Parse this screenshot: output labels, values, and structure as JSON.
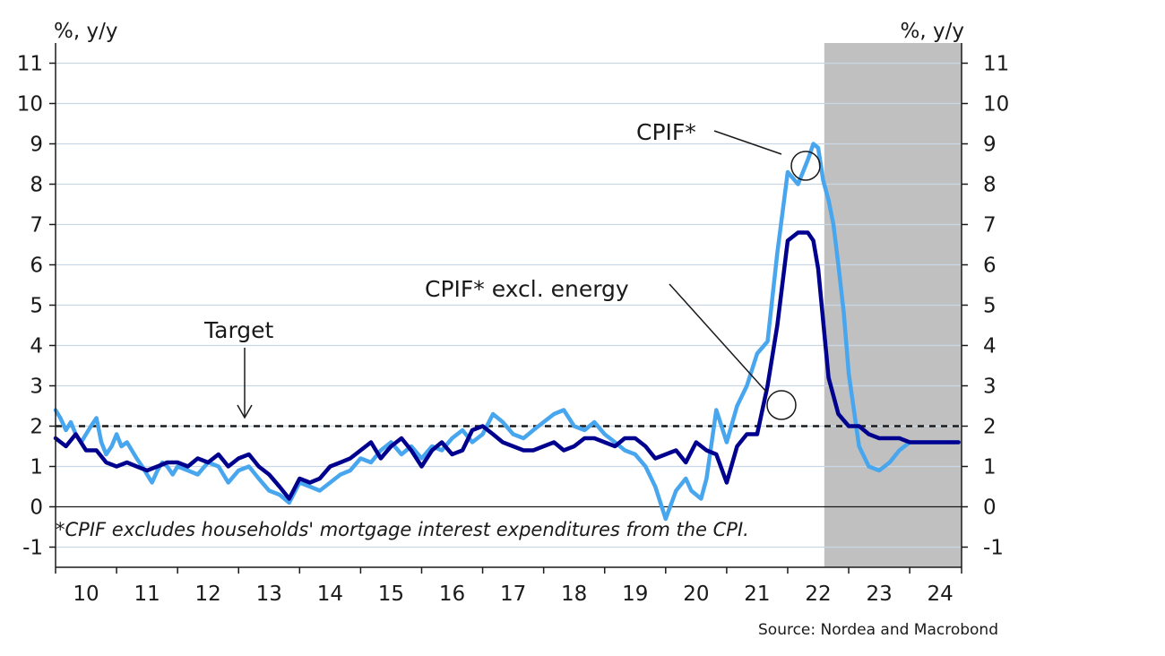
{
  "chart_data": {
    "type": "line",
    "y_unit_left": "%, y/y",
    "y_unit_right": "%, y/y",
    "ylim": [
      -1.5,
      11.5
    ],
    "y_ticks": [
      -1,
      0,
      1,
      2,
      3,
      4,
      5,
      6,
      7,
      8,
      9,
      10,
      11
    ],
    "x_range": [
      2010,
      2024.85
    ],
    "x_tick_labels": [
      "10",
      "11",
      "12",
      "13",
      "14",
      "15",
      "16",
      "17",
      "18",
      "19",
      "20",
      "21",
      "22",
      "23",
      "24"
    ],
    "grid": true,
    "target_value": 2,
    "target_label": "Target",
    "forecast_shading_start": 2022.6,
    "forecast_shading_color": "#c0c0c0",
    "series": [
      {
        "name": "CPIF*",
        "color": "#48a6ee",
        "x": [
          2010.0,
          2010.08,
          2010.17,
          2010.25,
          2010.33,
          2010.42,
          2010.5,
          2010.58,
          2010.67,
          2010.75,
          2010.83,
          2010.92,
          2011.0,
          2011.08,
          2011.17,
          2011.25,
          2011.33,
          2011.42,
          2011.5,
          2011.58,
          2011.67,
          2011.75,
          2011.83,
          2011.92,
          2012.0,
          2012.17,
          2012.33,
          2012.5,
          2012.67,
          2012.83,
          2013.0,
          2013.17,
          2013.33,
          2013.5,
          2013.67,
          2013.83,
          2014.0,
          2014.17,
          2014.33,
          2014.5,
          2014.67,
          2014.83,
          2015.0,
          2015.17,
          2015.33,
          2015.5,
          2015.67,
          2015.83,
          2016.0,
          2016.17,
          2016.33,
          2016.5,
          2016.67,
          2016.83,
          2017.0,
          2017.17,
          2017.33,
          2017.5,
          2017.67,
          2017.83,
          2018.0,
          2018.17,
          2018.33,
          2018.5,
          2018.67,
          2018.83,
          2019.0,
          2019.17,
          2019.33,
          2019.5,
          2019.67,
          2019.83,
          2020.0,
          2020.17,
          2020.33,
          2020.42,
          2020.5,
          2020.58,
          2020.67,
          2020.83,
          2021.0,
          2021.17,
          2021.33,
          2021.5,
          2021.67,
          2021.83,
          2022.0,
          2022.17,
          2022.33,
          2022.42,
          2022.5,
          2022.58,
          2022.67,
          2022.75,
          2022.83,
          2022.92,
          2023.0,
          2023.17,
          2023.33,
          2023.5,
          2023.67,
          2023.83,
          2024.0,
          2024.17,
          2024.33,
          2024.5,
          2024.67,
          2024.8
        ],
        "y": [
          2.4,
          2.2,
          1.9,
          2.1,
          1.8,
          1.6,
          1.8,
          2.0,
          2.2,
          1.6,
          1.3,
          1.5,
          1.8,
          1.5,
          1.6,
          1.4,
          1.2,
          1.0,
          0.8,
          0.6,
          0.9,
          1.1,
          1.0,
          0.8,
          1.0,
          0.9,
          0.8,
          1.1,
          1.0,
          0.6,
          0.9,
          1.0,
          0.7,
          0.4,
          0.3,
          0.1,
          0.6,
          0.5,
          0.4,
          0.6,
          0.8,
          0.9,
          1.2,
          1.1,
          1.4,
          1.6,
          1.3,
          1.5,
          1.2,
          1.5,
          1.4,
          1.7,
          1.9,
          1.6,
          1.8,
          2.3,
          2.1,
          1.8,
          1.7,
          1.9,
          2.1,
          2.3,
          2.4,
          2.0,
          1.9,
          2.1,
          1.8,
          1.6,
          1.4,
          1.3,
          1.0,
          0.5,
          -0.3,
          0.4,
          0.7,
          0.4,
          0.3,
          0.2,
          0.7,
          2.4,
          1.6,
          2.5,
          3.0,
          3.8,
          4.1,
          6.3,
          8.3,
          8.0,
          8.6,
          9.0,
          8.9,
          8.1,
          7.6,
          7.0,
          6.0,
          4.8,
          3.3,
          1.5,
          1.0,
          0.9,
          1.1,
          1.4,
          1.6,
          1.6,
          1.6,
          1.6,
          1.6,
          1.6
        ]
      },
      {
        "name": "CPIF* excl. energy",
        "color": "#00008f",
        "x": [
          2010.0,
          2010.17,
          2010.33,
          2010.5,
          2010.67,
          2010.83,
          2011.0,
          2011.17,
          2011.33,
          2011.5,
          2011.67,
          2011.83,
          2012.0,
          2012.17,
          2012.33,
          2012.5,
          2012.67,
          2012.83,
          2013.0,
          2013.17,
          2013.33,
          2013.5,
          2013.67,
          2013.83,
          2014.0,
          2014.17,
          2014.33,
          2014.5,
          2014.67,
          2014.83,
          2015.0,
          2015.17,
          2015.33,
          2015.5,
          2015.67,
          2015.83,
          2016.0,
          2016.17,
          2016.33,
          2016.5,
          2016.67,
          2016.83,
          2017.0,
          2017.17,
          2017.33,
          2017.5,
          2017.67,
          2017.83,
          2018.0,
          2018.17,
          2018.33,
          2018.5,
          2018.67,
          2018.83,
          2019.0,
          2019.17,
          2019.33,
          2019.5,
          2019.67,
          2019.83,
          2020.0,
          2020.17,
          2020.33,
          2020.5,
          2020.67,
          2020.83,
          2021.0,
          2021.17,
          2021.33,
          2021.5,
          2021.67,
          2021.83,
          2022.0,
          2022.17,
          2022.33,
          2022.42,
          2022.5,
          2022.67,
          2022.83,
          2023.0,
          2023.17,
          2023.33,
          2023.5,
          2023.67,
          2023.83,
          2024.0,
          2024.17,
          2024.33,
          2024.5,
          2024.67,
          2024.8
        ],
        "y": [
          1.7,
          1.5,
          1.8,
          1.4,
          1.4,
          1.1,
          1.0,
          1.1,
          1.0,
          0.9,
          1.0,
          1.1,
          1.1,
          1.0,
          1.2,
          1.1,
          1.3,
          1.0,
          1.2,
          1.3,
          1.0,
          0.8,
          0.5,
          0.2,
          0.7,
          0.6,
          0.7,
          1.0,
          1.1,
          1.2,
          1.4,
          1.6,
          1.2,
          1.5,
          1.7,
          1.4,
          1.0,
          1.4,
          1.6,
          1.3,
          1.4,
          1.9,
          2.0,
          1.8,
          1.6,
          1.5,
          1.4,
          1.4,
          1.5,
          1.6,
          1.4,
          1.5,
          1.7,
          1.7,
          1.6,
          1.5,
          1.7,
          1.7,
          1.5,
          1.2,
          1.3,
          1.4,
          1.1,
          1.6,
          1.4,
          1.3,
          0.6,
          1.5,
          1.8,
          1.8,
          3.0,
          4.5,
          6.6,
          6.8,
          6.8,
          6.6,
          5.9,
          3.2,
          2.3,
          2.0,
          2.0,
          1.8,
          1.7,
          1.7,
          1.7,
          1.6,
          1.6,
          1.6,
          1.6,
          1.6,
          1.6
        ]
      }
    ],
    "annotations": [
      {
        "text": "CPIF*",
        "series": "CPIF*"
      },
      {
        "text": "CPIF* excl. energy",
        "series": "CPIF* excl. energy"
      }
    ],
    "footnote": "*CPIF excludes households' mortgage interest expenditures from the CPI.",
    "source": "Source: Nordea and Macrobond"
  }
}
